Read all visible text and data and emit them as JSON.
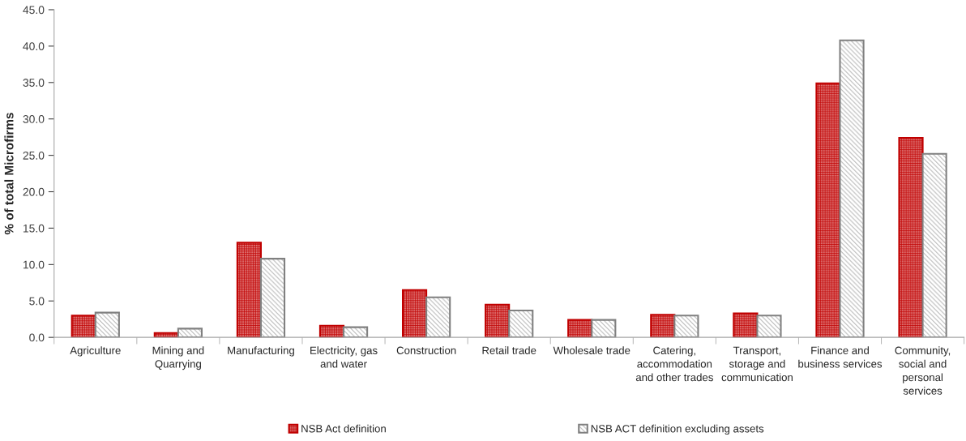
{
  "chart_data": {
    "type": "bar",
    "ylabel": "% of total Microfirms",
    "categories": [
      "Agriculture",
      "Mining and\nQuarrying",
      "Manufacturing",
      "Electricity, gas\nand water",
      "Construction",
      "Retail trade",
      "Wholesale trade",
      "Catering,\naccommodation\nand other trades",
      "Transport,\nstorage and\ncommunication",
      "Finance and\nbusiness services",
      "Community,\nsocial and\npersonal\nservices"
    ],
    "series": [
      {
        "name": "NSB Act definition",
        "color": "#c00000",
        "values": [
          3.0,
          0.6,
          13.0,
          1.6,
          6.5,
          4.5,
          2.4,
          3.1,
          3.3,
          34.9,
          27.4
        ]
      },
      {
        "name": "NSB ACT definition excluding assets",
        "color": "#808080",
        "values": [
          3.4,
          1.2,
          10.8,
          1.4,
          5.5,
          3.7,
          2.4,
          3.0,
          3.0,
          40.8,
          25.2
        ]
      }
    ],
    "ylim": [
      0,
      45
    ],
    "yticks": [
      {
        "value": 0,
        "label": "0.0"
      },
      {
        "value": 5,
        "label": "5.0"
      },
      {
        "value": 10,
        "label": "10.0"
      },
      {
        "value": 15,
        "label": "15.0"
      },
      {
        "value": 20,
        "label": "20.0"
      },
      {
        "value": 25,
        "label": "25.0"
      },
      {
        "value": 30,
        "label": "30.0"
      },
      {
        "value": 35,
        "label": "35.0"
      },
      {
        "value": 40,
        "label": "40.0"
      },
      {
        "value": 45,
        "label": "45.0"
      }
    ],
    "legend": "bottom"
  }
}
